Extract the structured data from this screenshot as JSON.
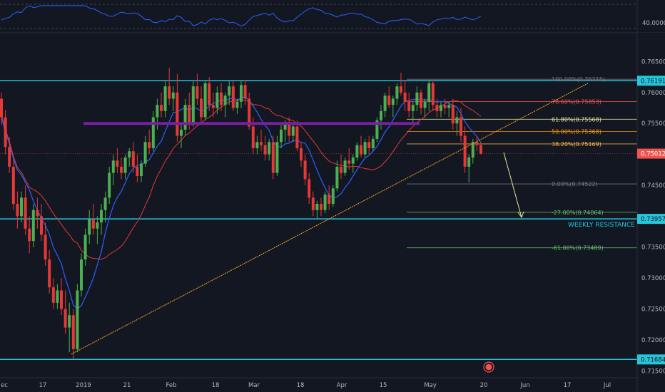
{
  "chart_data": {
    "type": "candlestick",
    "title": "",
    "xlabel": "",
    "ylabel": "",
    "ylim": [
      0.7148,
      0.7692
    ],
    "grid": false,
    "colors": {
      "background": "#131722",
      "up": "#26a69a",
      "down": "#ef5350",
      "up_alt": "#4caf50",
      "ma_blue": "#2962ff",
      "ma_red": "#e53935",
      "cyan": "#26c6da",
      "purple": "#7b1fa2",
      "trendline": "#f9a825",
      "axis_text": "#b2b5be",
      "grid_line": "#2a2e39"
    },
    "x_ticks": [
      "ec",
      "17",
      "2019",
      "21",
      "Feb",
      "18",
      "Mar",
      "18",
      "Apr",
      "15",
      "May",
      "20",
      "Jun",
      "17",
      "Jul"
    ],
    "y_ticks": [
      "0.76500",
      "0.76000",
      "0.75500",
      "0.75000",
      "0.74500",
      "0.74000",
      "0.73500",
      "0.73000",
      "0.72500",
      "0.72000",
      "0.71500"
    ],
    "price_labels": [
      {
        "text": "0.76191",
        "value": 0.76191
      },
      {
        "text": "0.75012",
        "value": 0.75012
      },
      {
        "text": "0.73957",
        "value": 0.73957
      },
      {
        "text": "0.71684",
        "value": 0.71684
      }
    ],
    "horizontal_levels": [
      {
        "value": 0.76191,
        "color": "cyan"
      },
      {
        "value": 0.73957,
        "color": "cyan",
        "label": "WEEKLY RESISTANCE"
      },
      {
        "value": 0.71684,
        "color": "cyan"
      }
    ],
    "zone_band": {
      "value": 0.755,
      "from": "late Dec",
      "to": "late Apr",
      "color": "purple"
    },
    "trendline": {
      "from": {
        "date": "2019-01-01",
        "value": 0.7177
      },
      "to": {
        "date": "2019-07-01",
        "value": 0.7615
      }
    },
    "fibonacci": [
      {
        "label": "100.00%(0.76215)",
        "value": 0.76215,
        "color": "#787b86"
      },
      {
        "label": "78.60%(0.75853)",
        "value": 0.75853,
        "color": "#ef5350"
      },
      {
        "label": "61.80%(0.75568)",
        "value": 0.75568,
        "color": "#e6e6a0"
      },
      {
        "label": "50.00%(0.75368)",
        "value": 0.75368,
        "color": "#ff9800"
      },
      {
        "label": "38.20%(0.75169)",
        "value": 0.75169,
        "color": "#ffb74d"
      },
      {
        "label": "0.00%(0.74522)",
        "value": 0.74522,
        "color": "#787b86"
      },
      {
        "label": "-27.00%(0.74064)",
        "value": 0.74064,
        "color": "#66bb6a"
      },
      {
        "label": "-61.00%(0.73489)",
        "value": 0.73489,
        "color": "#66bb6a"
      }
    ],
    "indicator": {
      "label": "40.0000",
      "value": 40
    },
    "candles": [
      [
        0.759,
        0.76,
        0.7548,
        0.756
      ],
      [
        0.756,
        0.7572,
        0.75,
        0.7512
      ],
      [
        0.7512,
        0.7528,
        0.747,
        0.748
      ],
      [
        0.748,
        0.749,
        0.741,
        0.742
      ],
      [
        0.742,
        0.744,
        0.738,
        0.74
      ],
      [
        0.74,
        0.744,
        0.739,
        0.743
      ],
      [
        0.743,
        0.745,
        0.737,
        0.738
      ],
      [
        0.738,
        0.74,
        0.734,
        0.736
      ],
      [
        0.736,
        0.742,
        0.735,
        0.741
      ],
      [
        0.741,
        0.743,
        0.738,
        0.74
      ],
      [
        0.74,
        0.742,
        0.736,
        0.737
      ],
      [
        0.737,
        0.739,
        0.732,
        0.733
      ],
      [
        0.733,
        0.7345,
        0.7275,
        0.7285
      ],
      [
        0.7285,
        0.73,
        0.725,
        0.726
      ],
      [
        0.726,
        0.729,
        0.725,
        0.728
      ],
      [
        0.728,
        0.73,
        0.724,
        0.725
      ],
      [
        0.725,
        0.728,
        0.721,
        0.722
      ],
      [
        0.722,
        0.726,
        0.718,
        0.724
      ],
      [
        0.724,
        0.725,
        0.717,
        0.7185
      ],
      [
        0.7185,
        0.729,
        0.718,
        0.728
      ],
      [
        0.728,
        0.734,
        0.727,
        0.733
      ],
      [
        0.733,
        0.738,
        0.732,
        0.737
      ],
      [
        0.737,
        0.741,
        0.7355,
        0.7395
      ],
      [
        0.7395,
        0.742,
        0.737,
        0.738
      ],
      [
        0.738,
        0.74,
        0.7355,
        0.739
      ],
      [
        0.739,
        0.742,
        0.737,
        0.741
      ],
      [
        0.741,
        0.744,
        0.739,
        0.743
      ],
      [
        0.743,
        0.748,
        0.742,
        0.747
      ],
      [
        0.747,
        0.75,
        0.745,
        0.749
      ],
      [
        0.749,
        0.751,
        0.747,
        0.748
      ],
      [
        0.748,
        0.7495,
        0.746,
        0.747
      ],
      [
        0.747,
        0.75,
        0.746,
        0.7495
      ],
      [
        0.7495,
        0.751,
        0.748,
        0.7505
      ],
      [
        0.7505,
        0.752,
        0.747,
        0.748
      ],
      [
        0.748,
        0.75,
        0.7455,
        0.7465
      ],
      [
        0.7465,
        0.749,
        0.7455,
        0.7485
      ],
      [
        0.7485,
        0.753,
        0.748,
        0.752
      ],
      [
        0.752,
        0.754,
        0.75,
        0.751
      ],
      [
        0.751,
        0.757,
        0.7505,
        0.756
      ],
      [
        0.756,
        0.759,
        0.754,
        0.758
      ],
      [
        0.758,
        0.76,
        0.756,
        0.757
      ],
      [
        0.757,
        0.762,
        0.756,
        0.761
      ],
      [
        0.761,
        0.764,
        0.758,
        0.759
      ],
      [
        0.759,
        0.761,
        0.757,
        0.76
      ],
      [
        0.76,
        0.763,
        0.752,
        0.753
      ],
      [
        0.753,
        0.755,
        0.751,
        0.754
      ],
      [
        0.754,
        0.759,
        0.753,
        0.758
      ],
      [
        0.758,
        0.76,
        0.754,
        0.755
      ],
      [
        0.755,
        0.762,
        0.7545,
        0.761
      ],
      [
        0.761,
        0.763,
        0.758,
        0.759
      ],
      [
        0.759,
        0.761,
        0.755,
        0.756
      ],
      [
        0.756,
        0.762,
        0.7555,
        0.7615
      ],
      [
        0.7615,
        0.7625,
        0.757,
        0.758
      ],
      [
        0.758,
        0.76,
        0.756,
        0.7575
      ],
      [
        0.7575,
        0.761,
        0.7565,
        0.76
      ],
      [
        0.76,
        0.7615,
        0.757,
        0.758
      ],
      [
        0.758,
        0.76,
        0.756,
        0.7595
      ],
      [
        0.7595,
        0.7618,
        0.758,
        0.761
      ],
      [
        0.761,
        0.7618,
        0.757,
        0.7575
      ],
      [
        0.7575,
        0.759,
        0.7565,
        0.7585
      ],
      [
        0.7585,
        0.7618,
        0.7575,
        0.7612
      ],
      [
        0.7612,
        0.762,
        0.758,
        0.759
      ],
      [
        0.759,
        0.76,
        0.754,
        0.7545
      ],
      [
        0.7545,
        0.756,
        0.75,
        0.751
      ],
      [
        0.751,
        0.753,
        0.75,
        0.752
      ],
      [
        0.752,
        0.754,
        0.7505,
        0.7515
      ],
      [
        0.7515,
        0.753,
        0.749,
        0.75
      ],
      [
        0.75,
        0.7525,
        0.749,
        0.752
      ],
      [
        0.752,
        0.753,
        0.746,
        0.747
      ],
      [
        0.747,
        0.753,
        0.7465,
        0.752
      ],
      [
        0.752,
        0.755,
        0.751,
        0.754
      ],
      [
        0.754,
        0.7555,
        0.752,
        0.755
      ],
      [
        0.755,
        0.756,
        0.752,
        0.753
      ],
      [
        0.753,
        0.755,
        0.752,
        0.7545
      ],
      [
        0.7545,
        0.7555,
        0.7505,
        0.751
      ],
      [
        0.751,
        0.752,
        0.748,
        0.749
      ],
      [
        0.749,
        0.75,
        0.745,
        0.746
      ],
      [
        0.746,
        0.747,
        0.742,
        0.743
      ],
      [
        0.743,
        0.744,
        0.74,
        0.741
      ],
      [
        0.741,
        0.7425,
        0.7395,
        0.742
      ],
      [
        0.742,
        0.743,
        0.74,
        0.741
      ],
      [
        0.741,
        0.744,
        0.7405,
        0.7435
      ],
      [
        0.7435,
        0.745,
        0.741,
        0.742
      ],
      [
        0.742,
        0.745,
        0.7415,
        0.7445
      ],
      [
        0.7445,
        0.749,
        0.744,
        0.748
      ],
      [
        0.748,
        0.75,
        0.746,
        0.747
      ],
      [
        0.747,
        0.7495,
        0.7465,
        0.749
      ],
      [
        0.749,
        0.751,
        0.7475,
        0.7485
      ],
      [
        0.7485,
        0.75,
        0.747,
        0.7495
      ],
      [
        0.7495,
        0.752,
        0.749,
        0.7515
      ],
      [
        0.7515,
        0.753,
        0.7495,
        0.75
      ],
      [
        0.75,
        0.7525,
        0.7495,
        0.752
      ],
      [
        0.752,
        0.753,
        0.75,
        0.751
      ],
      [
        0.751,
        0.753,
        0.7505,
        0.7525
      ],
      [
        0.7525,
        0.756,
        0.752,
        0.7555
      ],
      [
        0.7555,
        0.758,
        0.754,
        0.757
      ],
      [
        0.757,
        0.76,
        0.756,
        0.7595
      ],
      [
        0.7595,
        0.761,
        0.7575,
        0.758
      ],
      [
        0.758,
        0.7595,
        0.756,
        0.759
      ],
      [
        0.759,
        0.7615,
        0.758,
        0.761
      ],
      [
        0.761,
        0.7632,
        0.7595,
        0.76
      ],
      [
        0.76,
        0.762,
        0.757,
        0.7585
      ],
      [
        0.7585,
        0.76,
        0.756,
        0.757
      ],
      [
        0.757,
        0.7585,
        0.755,
        0.758
      ],
      [
        0.758,
        0.761,
        0.757,
        0.76
      ],
      [
        0.76,
        0.7605,
        0.7565,
        0.7575
      ],
      [
        0.7575,
        0.759,
        0.756,
        0.7585
      ],
      [
        0.7585,
        0.762,
        0.757,
        0.7615
      ],
      [
        0.7615,
        0.762,
        0.757,
        0.758
      ],
      [
        0.758,
        0.759,
        0.756,
        0.757
      ],
      [
        0.757,
        0.7585,
        0.756,
        0.758
      ],
      [
        0.758,
        0.759,
        0.7565,
        0.7575
      ],
      [
        0.7575,
        0.7585,
        0.756,
        0.758
      ],
      [
        0.758,
        0.759,
        0.754,
        0.755
      ],
      [
        0.755,
        0.757,
        0.753,
        0.756
      ],
      [
        0.756,
        0.7575,
        0.752,
        0.753
      ],
      [
        0.753,
        0.7545,
        0.747,
        0.748
      ],
      [
        0.748,
        0.75,
        0.7455,
        0.7495
      ],
      [
        0.7495,
        0.7525,
        0.7485,
        0.752
      ],
      [
        0.752,
        0.753,
        0.7505,
        0.7515
      ],
      [
        0.7515,
        0.752,
        0.75,
        0.7501
      ]
    ]
  },
  "footer": {
    "marker": "event-marker"
  }
}
